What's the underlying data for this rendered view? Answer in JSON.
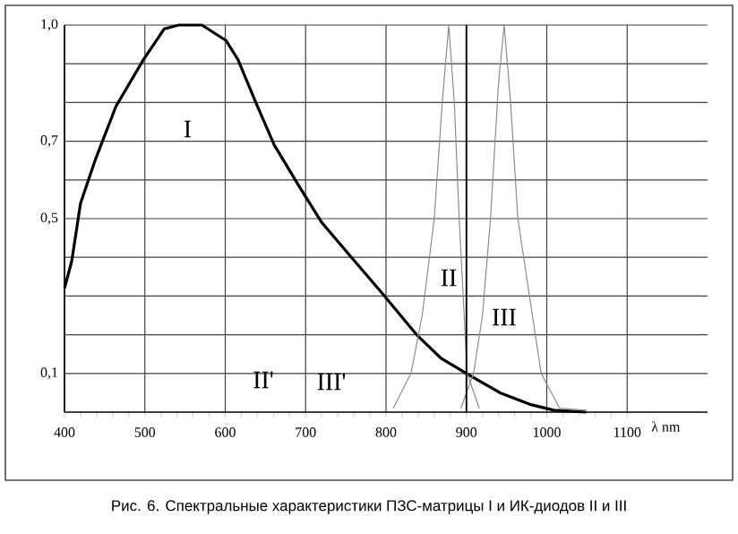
{
  "chart_data": {
    "type": "line",
    "x": [
      400,
      409,
      420,
      438,
      464,
      498,
      524,
      542,
      571,
      601,
      616,
      638,
      661,
      690,
      720,
      757,
      794,
      838,
      868,
      900,
      942,
      979,
      1009,
      1049
    ],
    "series": [
      {
        "name": "I",
        "color": "#000000",
        "values": [
          0.32,
          0.39,
          0.54,
          0.65,
          0.79,
          0.91,
          0.99,
          1.0,
          1.0,
          0.96,
          0.91,
          0.8,
          0.69,
          0.59,
          0.49,
          0.4,
          0.31,
          0.2,
          0.14,
          0.1,
          0.05,
          0.02,
          0.005,
          0.0
        ]
      },
      {
        "name": "II",
        "color": "#8c8c8c",
        "x": [
          809,
          831,
          845,
          860,
          870,
          878,
          885,
          891,
          901,
          916
        ],
        "values": [
          0.01,
          0.1,
          0.25,
          0.5,
          0.8,
          1.0,
          0.8,
          0.5,
          0.1,
          0.01
        ]
      },
      {
        "name": "III",
        "color": "#8c8c8c",
        "x": [
          893,
          909,
          920,
          930,
          940,
          947,
          955,
          964,
          993,
          1016,
          1050
        ],
        "values": [
          0.01,
          0.1,
          0.25,
          0.5,
          0.85,
          1.0,
          0.8,
          0.5,
          0.1,
          0.01,
          0.005
        ]
      }
    ],
    "xlim": [
      400,
      1200
    ],
    "ylim": [
      0,
      1.0
    ],
    "xticks": [
      400,
      500,
      600,
      700,
      800,
      900,
      1000,
      1100
    ],
    "yticks": [
      {
        "value": 0.1,
        "label": "0,1"
      },
      {
        "value": 0.2,
        "label": null
      },
      {
        "value": 0.3,
        "label": null
      },
      {
        "value": 0.4,
        "label": null
      },
      {
        "value": 0.5,
        "label": "0,5"
      },
      {
        "value": 0.6,
        "label": null
      },
      {
        "value": 0.7,
        "label": "0,7"
      },
      {
        "value": 0.8,
        "label": null
      },
      {
        "value": 0.9,
        "label": null
      },
      {
        "value": 1.0,
        "label": "1,0"
      }
    ],
    "grid": true,
    "marker": "none",
    "line_style": "solid",
    "xlabel": "λ nm",
    "ref_lines": [
      {
        "axis": "x",
        "value": 900,
        "color": "#000000"
      }
    ],
    "annotations": [
      "II'",
      "III'",
      "Рис. 6. Спектральные характеристики ПЗС-матрицы I и ИК-диодов II и III"
    ]
  }
}
